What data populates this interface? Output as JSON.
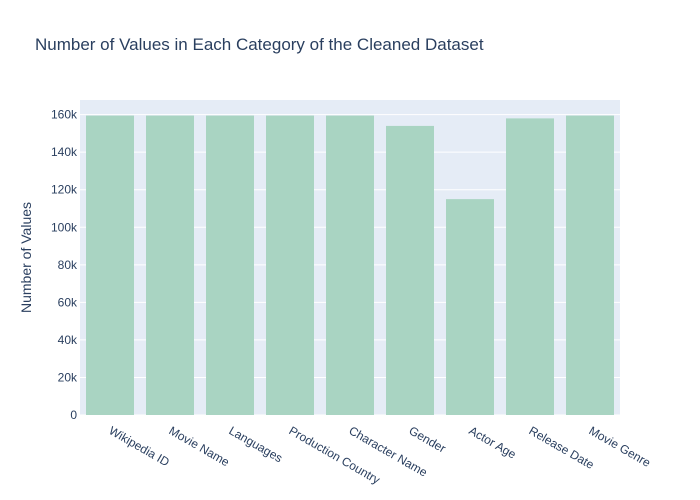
{
  "chart_data": {
    "type": "bar",
    "title": "Number of Values in Each Category of the Cleaned Dataset",
    "xlabel": "",
    "ylabel": "Number of Values",
    "categories": [
      "Wikipedia ID",
      "Movie Name",
      "Languages",
      "Production Country",
      "Character Name",
      "Gender",
      "Actor Age",
      "Release Date",
      "Movie Genre"
    ],
    "values": [
      159500,
      159500,
      159500,
      159500,
      159500,
      154000,
      115000,
      158000,
      159500
    ],
    "ylim": [
      0,
      167800
    ],
    "yticks": [
      0,
      20000,
      40000,
      60000,
      80000,
      100000,
      120000,
      140000,
      160000
    ],
    "ytick_labels": [
      "0",
      "20k",
      "40k",
      "60k",
      "80k",
      "100k",
      "120k",
      "140k",
      "160k"
    ],
    "grid": true,
    "colors": {
      "bar": "#a9d4c2",
      "plot_bg": "#e5ecf6",
      "grid": "#ffffff",
      "text": "#2a3f5f"
    }
  }
}
